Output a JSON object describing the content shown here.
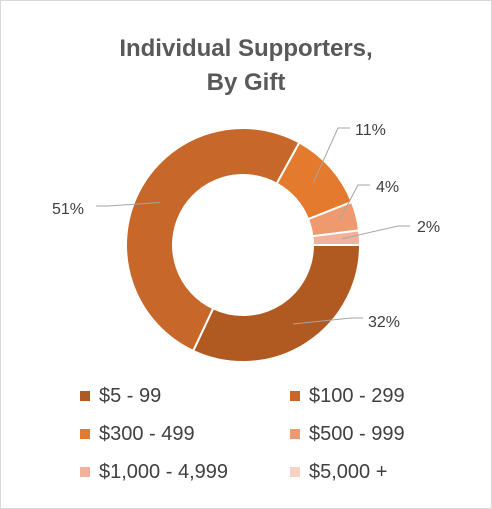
{
  "chart_data": {
    "type": "pie",
    "donut": true,
    "title_lines": [
      "Individual Supporters,",
      "By Gift"
    ],
    "categories": [
      "$5 - 99",
      "$100 - 299",
      "$300 - 499",
      "$500 - 999",
      "$1,000 - 4,999",
      "$5,000 +"
    ],
    "values": [
      32,
      51,
      11,
      4,
      2,
      0
    ],
    "data_labels": [
      "32%",
      "51%",
      "11%",
      "4%",
      "2%",
      ""
    ],
    "colors": [
      "#b05a21",
      "#c8672a",
      "#e47a2e",
      "#ef9a6e",
      "#f2b19a",
      "#f7d2c5"
    ],
    "legend_position": "bottom"
  }
}
